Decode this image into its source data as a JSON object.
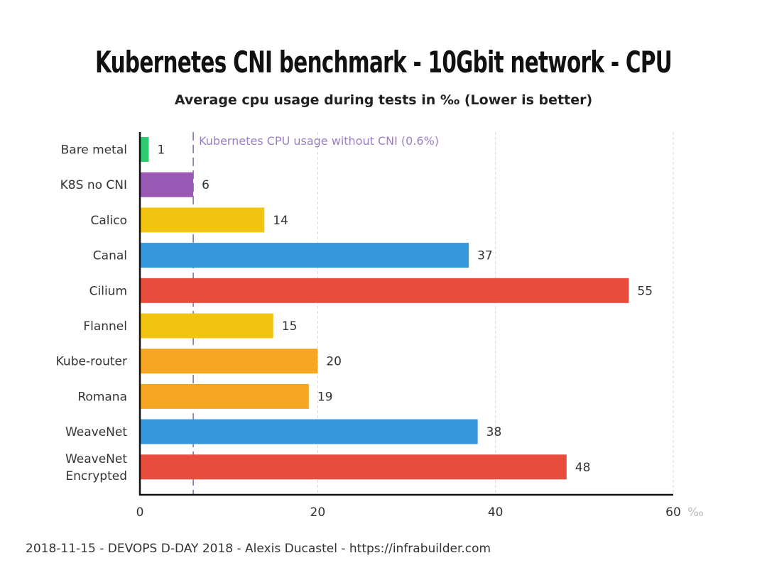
{
  "chart_data": {
    "type": "bar",
    "orientation": "horizontal",
    "title": "Kubernetes CNI benchmark - 10Gbit network - CPU",
    "subtitle": "Average cpu usage during tests in ‰ (Lower is better)",
    "unit": "‰",
    "categories": [
      "Bare metal",
      "K8S no CNI",
      "Calico",
      "Canal",
      "Cilium",
      "Flannel",
      "Kube-router",
      "Romana",
      "WeaveNet",
      "WeaveNet Encrypted"
    ],
    "values": [
      1,
      6,
      14,
      37,
      55,
      15,
      20,
      19,
      38,
      48
    ],
    "colors": [
      "#2ecc71",
      "#9b59b6",
      "#f1c40f",
      "#3498db",
      "#e74c3c",
      "#f1c40f",
      "#f5a623",
      "#f5a623",
      "#3498db",
      "#e74c3c"
    ],
    "xlim": [
      0,
      60
    ],
    "xticks": [
      0,
      20,
      40,
      60
    ],
    "grid": "vertical dashed",
    "reference_line": {
      "value": 6,
      "label": "Kubernetes CPU usage without CNI (0.6%)",
      "color": "#9b7fc4"
    }
  },
  "footer": "2018-11-15 - DEVOPS D-DAY 2018 - Alexis Ducastel - https://infrabuilder.com"
}
